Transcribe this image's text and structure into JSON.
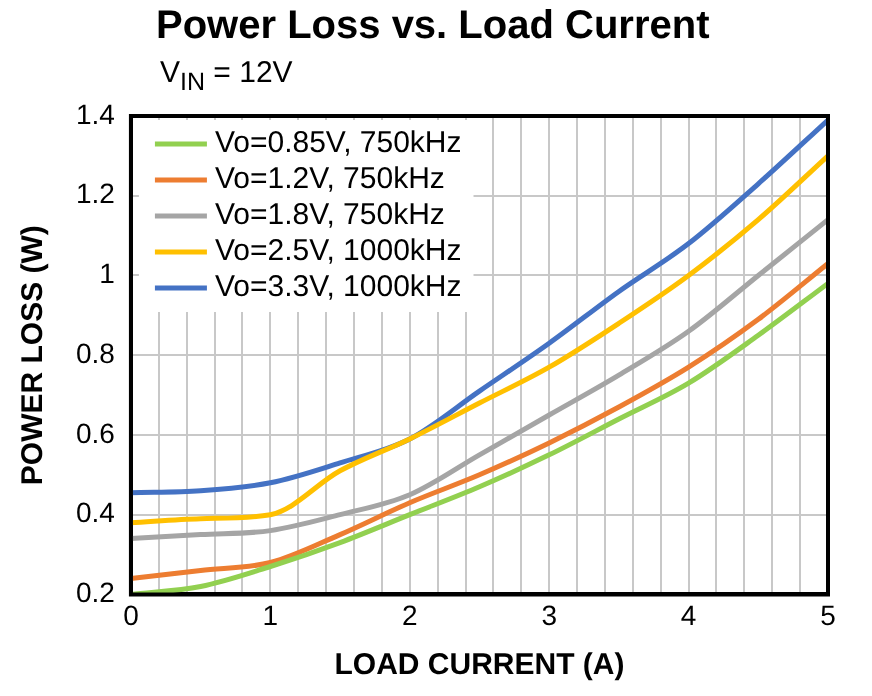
{
  "chart_data": {
    "type": "line",
    "title": "Power Loss vs. Load Current",
    "subtitle": "V$_{IN}$ = 12V",
    "xlabel": "LOAD CURRENT (A)",
    "ylabel": "POWER LOSS (W)",
    "x": [
      0,
      0.5,
      1,
      1.5,
      2,
      2.5,
      3,
      3.5,
      4,
      4.5,
      5
    ],
    "series": [
      {
        "name": "Vo=0.85V, 750kHz",
        "color": "#92d050",
        "values": [
          0.2,
          0.22,
          0.27,
          0.33,
          0.4,
          0.47,
          0.55,
          0.64,
          0.73,
          0.85,
          0.98
        ]
      },
      {
        "name": "Vo=1.2V, 750kHz",
        "color": "#ed7d31",
        "values": [
          0.24,
          0.26,
          0.28,
          0.35,
          0.43,
          0.5,
          0.58,
          0.67,
          0.77,
          0.89,
          1.03
        ]
      },
      {
        "name": "Vo=1.8V, 750kHz",
        "color": "#a5a5a5",
        "values": [
          0.34,
          0.35,
          0.36,
          0.4,
          0.45,
          0.55,
          0.65,
          0.75,
          0.86,
          1.0,
          1.14
        ]
      },
      {
        "name": "Vo=2.5V, 1000kHz",
        "color": "#ffc000",
        "values": [
          0.38,
          0.39,
          0.4,
          0.51,
          0.59,
          0.68,
          0.77,
          0.88,
          1.0,
          1.14,
          1.3
        ]
      },
      {
        "name": "Vo=3.3V, 1000kHz",
        "color": "#4472c4",
        "values": [
          0.455,
          0.46,
          0.48,
          0.53,
          0.59,
          0.71,
          0.83,
          0.96,
          1.08,
          1.23,
          1.39
        ]
      }
    ],
    "xlim": [
      0,
      5
    ],
    "xticks": [
      0,
      {
        "value": 0.2,
        "label": null
      },
      {
        "value": 0.4,
        "label": null
      },
      {
        "value": 0.6,
        "label": null
      },
      {
        "value": 0.8,
        "label": null
      },
      1,
      {
        "value": 1.2,
        "label": null
      },
      {
        "value": 1.4,
        "label": null
      },
      {
        "value": 1.6,
        "label": null
      },
      {
        "value": 1.8,
        "label": null
      },
      2,
      {
        "value": 2.2,
        "label": null
      },
      {
        "value": 2.4,
        "label": null
      },
      {
        "value": 2.6,
        "label": null
      },
      {
        "value": 2.8,
        "label": null
      },
      3,
      {
        "value": 3.2,
        "label": null
      },
      {
        "value": 3.4,
        "label": null
      },
      {
        "value": 3.6,
        "label": null
      },
      {
        "value": 3.8,
        "label": null
      },
      4,
      {
        "value": 4.2,
        "label": null
      },
      {
        "value": 4.4,
        "label": null
      },
      {
        "value": 4.6,
        "label": null
      },
      {
        "value": 4.8,
        "label": null
      },
      5
    ],
    "ylim": [
      0.2,
      1.4
    ],
    "yticks": [
      0.2,
      0.4,
      0.6,
      0.8,
      1,
      1.2,
      1.4
    ],
    "grid": true,
    "legend": "top left",
    "marker": "none",
    "line_style": "solid"
  }
}
